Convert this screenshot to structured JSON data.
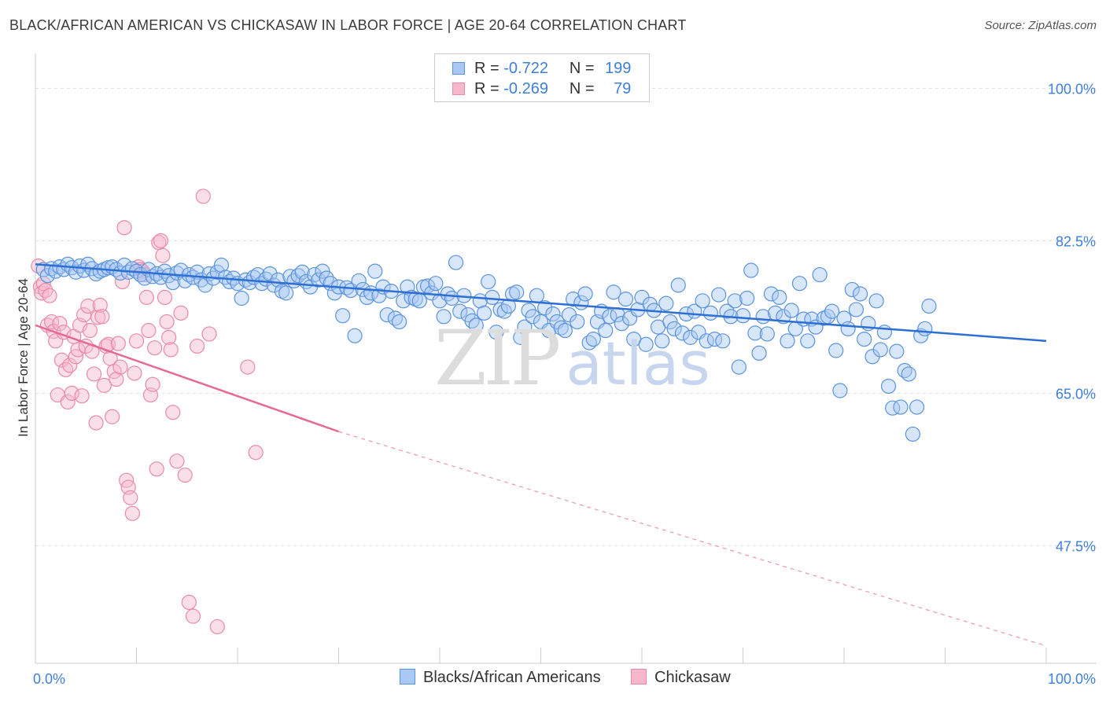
{
  "header": {
    "title": "BLACK/AFRICAN AMERICAN VS CHICKASAW IN LABOR FORCE | AGE 20-64 CORRELATION CHART",
    "source": "Source: ZipAtlas.com"
  },
  "watermark": {
    "zip": "ZIP",
    "atlas": "atlas"
  },
  "legend": {
    "rows": [
      {
        "r_label": "R =",
        "r_value": "-0.722",
        "n_label": "N =",
        "n_value": "199"
      },
      {
        "r_label": "R =",
        "r_value": "-0.269",
        "n_label": "N =",
        "n_value": "79"
      }
    ]
  },
  "colors": {
    "blue_fill": "#a9c8f3",
    "blue_stroke": "#5b93de",
    "blue_line": "#2d6fd3",
    "pink_fill": "#f7b8cb",
    "pink_stroke": "#ea8aa8",
    "pink_line": "#e56a93",
    "grid": "#dddddd",
    "tick_label": "#3f7fd9"
  },
  "chart_data": {
    "type": "scatter",
    "title": "BLACK/AFRICAN AMERICAN VS CHICKASAW IN LABOR FORCE | AGE 20-64 CORRELATION CHART",
    "xlabel": "",
    "ylabel": "In Labor Force | Age 20-64",
    "xlim": [
      0,
      100
    ],
    "ylim": [
      34,
      104
    ],
    "x_tick_labels": [
      "0.0%",
      "100.0%"
    ],
    "y_ticks": [
      100.0,
      82.5,
      65.0,
      47.5
    ],
    "y_tick_labels": [
      "100.0%",
      "82.5%",
      "65.0%",
      "47.5%"
    ],
    "grid": true,
    "legend_position": "top-center",
    "series": [
      {
        "name": "Blacks/African Americans",
        "color": "#a9c8f3",
        "r": -0.722,
        "n": 199,
        "trend": {
          "x0": 0,
          "y0": 79.8,
          "x1": 100,
          "y1": 71.0
        },
        "points": [
          [
            0.8,
            79.2
          ],
          [
            1.2,
            78.5
          ],
          [
            1.6,
            79.3
          ],
          [
            2.0,
            79.0
          ],
          [
            2.4,
            79.5
          ],
          [
            2.8,
            79.2
          ],
          [
            3.2,
            79.8
          ],
          [
            3.6,
            79.4
          ],
          [
            4.0,
            78.9
          ],
          [
            4.4,
            79.6
          ],
          [
            4.8,
            79.1
          ],
          [
            5.2,
            79.8
          ],
          [
            5.6,
            79.3
          ],
          [
            6.0,
            78.7
          ],
          [
            6.4,
            79.0
          ],
          [
            6.8,
            79.2
          ],
          [
            7.2,
            79.4
          ],
          [
            7.6,
            79.5
          ],
          [
            8.0,
            79.2
          ],
          [
            8.4,
            78.8
          ],
          [
            8.8,
            79.7
          ],
          [
            9.2,
            78.9
          ],
          [
            9.6,
            79.3
          ],
          [
            10.0,
            79.0
          ],
          [
            10.4,
            78.6
          ],
          [
            10.8,
            78.2
          ],
          [
            11.2,
            79.2
          ],
          [
            11.6,
            78.4
          ],
          [
            12.0,
            78.7
          ],
          [
            12.4,
            78.3
          ],
          [
            12.8,
            79.0
          ],
          [
            13.2,
            78.5
          ],
          [
            13.6,
            77.7
          ],
          [
            14.0,
            78.8
          ],
          [
            14.4,
            79.1
          ],
          [
            14.8,
            77.9
          ],
          [
            15.2,
            78.6
          ],
          [
            15.6,
            78.3
          ],
          [
            16.0,
            78.9
          ],
          [
            16.4,
            78.0
          ],
          [
            16.8,
            77.4
          ],
          [
            17.2,
            78.7
          ],
          [
            17.6,
            78.2
          ],
          [
            18.0,
            78.9
          ],
          [
            18.4,
            79.7
          ],
          [
            18.8,
            78.3
          ],
          [
            19.2,
            77.8
          ],
          [
            19.6,
            78.2
          ],
          [
            20.0,
            77.6
          ],
          [
            20.4,
            75.9
          ],
          [
            20.8,
            78.0
          ],
          [
            21.2,
            77.7
          ],
          [
            21.6,
            78.3
          ],
          [
            22.0,
            78.6
          ],
          [
            22.4,
            77.6
          ],
          [
            22.8,
            78.1
          ],
          [
            23.2,
            78.7
          ],
          [
            23.6,
            77.4
          ],
          [
            24.0,
            78.0
          ],
          [
            24.4,
            76.7
          ],
          [
            24.8,
            76.5
          ],
          [
            25.2,
            78.4
          ],
          [
            25.6,
            77.9
          ],
          [
            26.0,
            78.5
          ],
          [
            26.4,
            78.9
          ],
          [
            26.8,
            77.8
          ],
          [
            27.2,
            77.2
          ],
          [
            27.6,
            78.6
          ],
          [
            28.0,
            78.0
          ],
          [
            28.4,
            79.0
          ],
          [
            28.8,
            78.2
          ],
          [
            29.2,
            77.6
          ],
          [
            29.6,
            76.5
          ],
          [
            30.0,
            77.2
          ],
          [
            30.4,
            73.9
          ],
          [
            30.8,
            77.1
          ],
          [
            31.2,
            76.8
          ],
          [
            31.6,
            71.6
          ],
          [
            32.0,
            77.9
          ],
          [
            32.4,
            76.9
          ],
          [
            32.8,
            76.0
          ],
          [
            33.2,
            76.5
          ],
          [
            33.6,
            79.0
          ],
          [
            34.0,
            76.2
          ],
          [
            34.4,
            77.2
          ],
          [
            34.8,
            74.0
          ],
          [
            35.2,
            76.7
          ],
          [
            35.6,
            73.6
          ],
          [
            36.0,
            73.2
          ],
          [
            36.4,
            75.6
          ],
          [
            36.8,
            77.2
          ],
          [
            37.2,
            76.0
          ],
          [
            37.6,
            75.8
          ],
          [
            38.0,
            75.6
          ],
          [
            38.4,
            77.2
          ],
          [
            38.8,
            77.3
          ],
          [
            39.2,
            76.5
          ],
          [
            39.6,
            77.6
          ],
          [
            40.0,
            75.6
          ],
          [
            40.4,
            73.8
          ],
          [
            40.8,
            76.4
          ],
          [
            41.2,
            75.9
          ],
          [
            41.6,
            80.0
          ],
          [
            42.0,
            74.4
          ],
          [
            42.4,
            76.2
          ],
          [
            42.8,
            74.0
          ],
          [
            43.2,
            73.3
          ],
          [
            43.6,
            72.8
          ],
          [
            44.0,
            75.6
          ],
          [
            44.4,
            74.2
          ],
          [
            44.8,
            77.8
          ],
          [
            45.2,
            76.0
          ],
          [
            45.6,
            72.0
          ],
          [
            46.0,
            74.6
          ],
          [
            46.4,
            74.4
          ],
          [
            46.8,
            75.0
          ],
          [
            47.2,
            76.4
          ],
          [
            47.6,
            76.6
          ],
          [
            48.0,
            71.4
          ],
          [
            48.4,
            72.6
          ],
          [
            48.8,
            74.5
          ],
          [
            49.2,
            73.8
          ],
          [
            49.6,
            76.2
          ],
          [
            50.0,
            73.2
          ],
          [
            50.4,
            74.8
          ],
          [
            50.8,
            72.2
          ],
          [
            51.2,
            74.1
          ],
          [
            51.6,
            73.2
          ],
          [
            52.0,
            72.5
          ],
          [
            52.4,
            72.2
          ],
          [
            52.8,
            74.0
          ],
          [
            53.2,
            75.8
          ],
          [
            53.6,
            73.2
          ],
          [
            54.0,
            75.4
          ],
          [
            54.4,
            76.4
          ],
          [
            54.8,
            70.8
          ],
          [
            55.2,
            71.2
          ],
          [
            55.6,
            73.2
          ],
          [
            56.0,
            74.4
          ],
          [
            56.4,
            72.2
          ],
          [
            56.8,
            73.8
          ],
          [
            57.2,
            76.6
          ],
          [
            57.6,
            74.0
          ],
          [
            58.0,
            73.0
          ],
          [
            58.4,
            75.8
          ],
          [
            58.8,
            73.6
          ],
          [
            59.2,
            71.2
          ],
          [
            59.6,
            74.6
          ],
          [
            60.0,
            76.0
          ],
          [
            60.4,
            70.6
          ],
          [
            60.8,
            75.2
          ],
          [
            61.2,
            74.5
          ],
          [
            61.6,
            72.6
          ],
          [
            62.0,
            71.0
          ],
          [
            62.4,
            75.3
          ],
          [
            62.8,
            73.2
          ],
          [
            63.2,
            72.4
          ],
          [
            63.6,
            77.4
          ],
          [
            64.0,
            71.9
          ],
          [
            64.4,
            74.1
          ],
          [
            64.8,
            71.4
          ],
          [
            65.2,
            74.4
          ],
          [
            65.6,
            72.0
          ],
          [
            66.0,
            75.6
          ],
          [
            66.4,
            71.0
          ],
          [
            66.8,
            74.2
          ],
          [
            67.2,
            71.2
          ],
          [
            67.6,
            76.3
          ],
          [
            68.0,
            71.0
          ],
          [
            68.4,
            74.4
          ],
          [
            68.8,
            73.8
          ],
          [
            69.2,
            75.6
          ],
          [
            69.6,
            68.0
          ],
          [
            70.0,
            73.9
          ],
          [
            70.4,
            75.9
          ],
          [
            70.8,
            79.1
          ],
          [
            71.2,
            71.9
          ],
          [
            71.6,
            69.6
          ],
          [
            72.0,
            73.8
          ],
          [
            72.4,
            71.8
          ],
          [
            72.8,
            76.4
          ],
          [
            73.2,
            74.2
          ],
          [
            73.6,
            76.0
          ],
          [
            74.0,
            73.8
          ],
          [
            74.4,
            71.0
          ],
          [
            74.8,
            74.5
          ],
          [
            75.2,
            72.4
          ],
          [
            75.6,
            77.6
          ],
          [
            76.0,
            73.5
          ],
          [
            76.4,
            71.0
          ],
          [
            76.8,
            73.5
          ],
          [
            77.2,
            72.6
          ],
          [
            77.6,
            78.6
          ],
          [
            78.0,
            73.6
          ],
          [
            78.4,
            73.8
          ],
          [
            78.8,
            74.4
          ],
          [
            79.2,
            69.9
          ],
          [
            79.6,
            65.3
          ],
          [
            80.0,
            73.6
          ],
          [
            80.4,
            72.4
          ],
          [
            80.8,
            76.9
          ],
          [
            81.2,
            74.6
          ],
          [
            81.6,
            76.4
          ],
          [
            82.0,
            71.2
          ],
          [
            82.4,
            73.0
          ],
          [
            82.8,
            69.2
          ],
          [
            83.2,
            75.6
          ],
          [
            83.6,
            70.0
          ],
          [
            84.0,
            72.0
          ],
          [
            84.4,
            65.8
          ],
          [
            84.8,
            63.3
          ],
          [
            85.2,
            69.8
          ],
          [
            85.6,
            63.4
          ],
          [
            86.0,
            67.6
          ],
          [
            86.4,
            67.2
          ],
          [
            86.8,
            60.3
          ],
          [
            87.2,
            63.4
          ],
          [
            87.6,
            71.6
          ],
          [
            88.0,
            72.4
          ],
          [
            88.4,
            75.0
          ]
        ]
      },
      {
        "name": "Chickasaw",
        "color": "#f7b8cb",
        "r": -0.269,
        "n": 79,
        "trend": {
          "x0": 0,
          "y0": 72.8,
          "x1": 30,
          "y1": 60.6
        },
        "dashed_extension": {
          "x0": 30,
          "y0": 60.6,
          "x1": 100,
          "y1": 36.0
        },
        "points": [
          [
            0.3,
            79.6
          ],
          [
            0.5,
            77.2
          ],
          [
            0.6,
            76.5
          ],
          [
            0.8,
            77.6
          ],
          [
            1.0,
            76.8
          ],
          [
            1.2,
            72.8
          ],
          [
            1.4,
            76.2
          ],
          [
            1.6,
            73.2
          ],
          [
            1.8,
            72.1
          ],
          [
            2.0,
            71.0
          ],
          [
            2.2,
            64.8
          ],
          [
            2.4,
            73.0
          ],
          [
            2.6,
            68.8
          ],
          [
            2.8,
            72.0
          ],
          [
            3.0,
            67.7
          ],
          [
            3.2,
            64.0
          ],
          [
            3.4,
            68.2
          ],
          [
            3.6,
            65.0
          ],
          [
            3.8,
            71.5
          ],
          [
            4.0,
            69.2
          ],
          [
            4.2,
            70.0
          ],
          [
            4.4,
            72.8
          ],
          [
            4.6,
            64.7
          ],
          [
            4.8,
            74.0
          ],
          [
            5.0,
            70.4
          ],
          [
            5.2,
            75.0
          ],
          [
            5.4,
            72.2
          ],
          [
            5.6,
            69.8
          ],
          [
            5.8,
            67.2
          ],
          [
            6.0,
            61.6
          ],
          [
            6.2,
            73.7
          ],
          [
            6.4,
            75.1
          ],
          [
            6.6,
            73.8
          ],
          [
            6.8,
            65.9
          ],
          [
            7.0,
            70.4
          ],
          [
            7.2,
            70.6
          ],
          [
            7.4,
            69.0
          ],
          [
            7.6,
            62.3
          ],
          [
            7.8,
            67.5
          ],
          [
            8.0,
            66.6
          ],
          [
            8.2,
            70.7
          ],
          [
            8.4,
            68.0
          ],
          [
            8.6,
            77.8
          ],
          [
            8.8,
            84.0
          ],
          [
            9.0,
            55.0
          ],
          [
            9.2,
            54.2
          ],
          [
            9.4,
            53.0
          ],
          [
            9.6,
            51.2
          ],
          [
            9.8,
            67.3
          ],
          [
            10.0,
            71.0
          ],
          [
            10.2,
            79.5
          ],
          [
            10.4,
            79.2
          ],
          [
            10.6,
            79.0
          ],
          [
            10.8,
            78.6
          ],
          [
            11.0,
            76.0
          ],
          [
            11.2,
            72.2
          ],
          [
            11.4,
            64.8
          ],
          [
            11.6,
            66.0
          ],
          [
            11.8,
            70.2
          ],
          [
            12.0,
            56.3
          ],
          [
            12.2,
            82.3
          ],
          [
            12.4,
            82.5
          ],
          [
            12.6,
            80.8
          ],
          [
            12.8,
            76.0
          ],
          [
            13.0,
            73.2
          ],
          [
            13.2,
            71.4
          ],
          [
            13.4,
            70.0
          ],
          [
            13.6,
            62.8
          ],
          [
            14.0,
            57.2
          ],
          [
            14.4,
            74.2
          ],
          [
            14.8,
            55.6
          ],
          [
            15.2,
            41.0
          ],
          [
            15.6,
            39.4
          ],
          [
            16.0,
            70.4
          ],
          [
            16.6,
            87.6
          ],
          [
            17.2,
            71.8
          ],
          [
            18.0,
            38.2
          ],
          [
            21.0,
            68.0
          ],
          [
            21.8,
            58.2
          ]
        ]
      }
    ]
  }
}
